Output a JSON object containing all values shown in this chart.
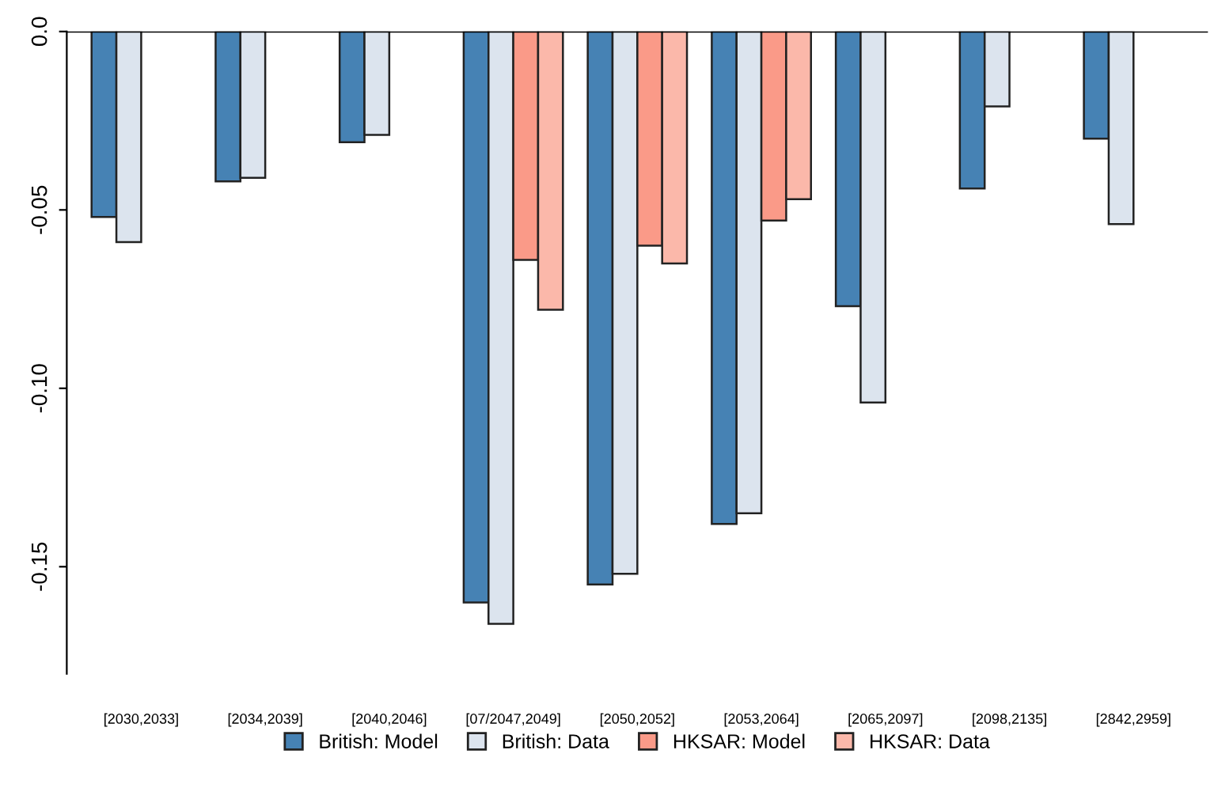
{
  "chart_data": {
    "type": "bar",
    "categories": [
      "[2030,2033]",
      "[2034,2039]",
      "[2040,2046]",
      "[07/2047,2049]",
      "[2050,2052]",
      "[2053,2064]",
      "[2065,2097]",
      "[2098,2135]",
      "[2842,2959]"
    ],
    "series": [
      {
        "name": "British: Model",
        "color": "#4682b4",
        "values": [
          -0.052,
          -0.042,
          -0.031,
          -0.16,
          -0.155,
          -0.138,
          -0.077,
          -0.044,
          -0.03
        ]
      },
      {
        "name": "British: Data",
        "color": "#dce4ee",
        "values": [
          -0.059,
          -0.041,
          -0.029,
          -0.166,
          -0.152,
          -0.135,
          -0.104,
          -0.021,
          -0.054
        ]
      },
      {
        "name": "HKSAR: Model",
        "color": "#fa9a88",
        "values": [
          null,
          null,
          null,
          -0.064,
          -0.06,
          -0.053,
          null,
          null,
          null
        ]
      },
      {
        "name": "HKSAR: Data",
        "color": "#fbb8aa",
        "values": [
          null,
          null,
          null,
          -0.078,
          -0.065,
          -0.047,
          null,
          null,
          null
        ]
      }
    ],
    "ylim": [
      -0.18,
      0
    ],
    "yticks": [
      {
        "value": 0,
        "label": "0.0"
      },
      {
        "value": -0.05,
        "label": "-0.05"
      },
      {
        "value": -0.1,
        "label": "-0.10"
      },
      {
        "value": -0.15,
        "label": "-0.15"
      }
    ],
    "ref_lines": [
      {
        "axis": "y",
        "value": 0,
        "color": "#000000"
      }
    ],
    "grid": false,
    "legend": "bottom"
  }
}
